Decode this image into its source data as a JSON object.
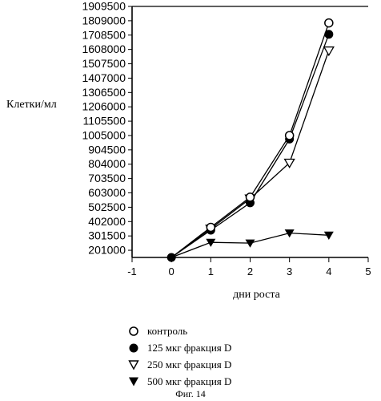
{
  "chart_data": {
    "type": "line",
    "xlabel": "дни роста",
    "ylabel": "Клетки/мл",
    "x_ticks": [
      "-1",
      "0",
      "1",
      "2",
      "3",
      "4",
      "5"
    ],
    "xlim": [
      -1,
      5
    ],
    "y_ticks": [
      "201000",
      "301500",
      "402000",
      "502500",
      "603000",
      "703500",
      "804000",
      "904500",
      "1005000",
      "1105500",
      "1206000",
      "1306500",
      "1407000",
      "1507500",
      "1608000",
      "1708500",
      "1809000",
      "1909500"
    ],
    "ylim": [
      150750,
      1909500
    ],
    "grid": false,
    "legend_position": "bottom",
    "series": [
      {
        "name": "контроль",
        "marker": "open-circle",
        "x": [
          0,
          1,
          2,
          3,
          4
        ],
        "y": [
          150750,
          361800,
          572850,
          1005000,
          1793900
        ]
      },
      {
        "name": "125 мкг фракция D",
        "marker": "filled-circle",
        "x": [
          0,
          1,
          2,
          3,
          4
        ],
        "y": [
          150750,
          341700,
          533650,
          980000,
          1714000
        ]
      },
      {
        "name": "250 мкг фракция D",
        "marker": "open-triangle-down",
        "x": [
          0,
          1,
          2,
          3,
          4
        ],
        "y": [
          150750,
          351750,
          562800,
          814000,
          1600000
        ]
      },
      {
        "name": "500 мкг фракция D",
        "marker": "filled-triangle-down",
        "x": [
          0,
          1,
          2,
          3,
          4
        ],
        "y": [
          150750,
          256300,
          251300,
          321600,
          306500
        ]
      }
    ]
  },
  "figure_caption": "Фиг. 14"
}
